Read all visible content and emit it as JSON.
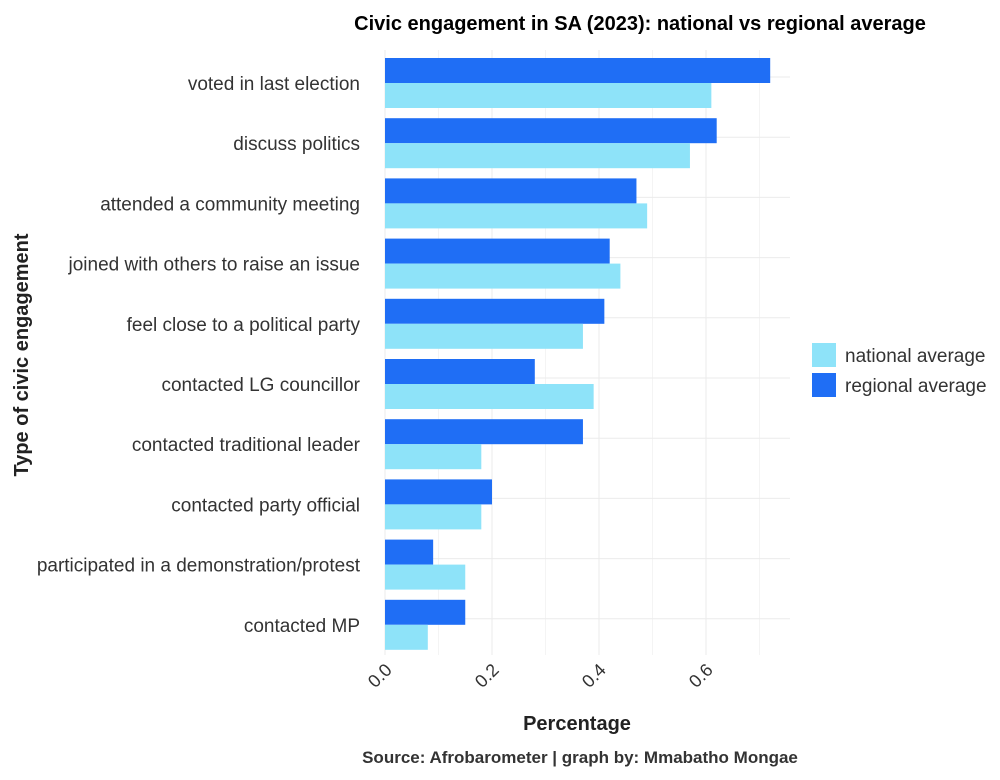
{
  "chart_data": {
    "type": "bar",
    "orientation": "horizontal",
    "title": "Civic engagement in SA (2023): national vs regional average",
    "xlabel": "Percentage",
    "ylabel": "Type of civic engagement",
    "caption": "Source: Afrobarometer | graph by: Mmabatho Mongae",
    "xlim": [
      0,
      0.75
    ],
    "xticks": [
      "0.0",
      "0.2",
      "0.4",
      "0.6"
    ],
    "xtick_values": [
      0.0,
      0.2,
      0.4,
      0.6
    ],
    "grid": true,
    "legend_position": "right",
    "categories": [
      "voted in last election",
      "discuss politics",
      "attended a community meeting",
      "joined with others to raise an issue",
      "feel close to a political party",
      "contacted LG councillor",
      "contacted traditional leader",
      "contacted party official",
      "participated in a demonstration/protest",
      "contacted MP"
    ],
    "series": [
      {
        "name": "national average",
        "color": "#8ee3f9",
        "values": [
          0.61,
          0.57,
          0.49,
          0.44,
          0.37,
          0.39,
          0.18,
          0.18,
          0.15,
          0.08
        ]
      },
      {
        "name": "regional average",
        "color": "#1f6ef5",
        "values": [
          0.72,
          0.62,
          0.47,
          0.42,
          0.41,
          0.28,
          0.37,
          0.2,
          0.09,
          0.15
        ]
      }
    ]
  }
}
